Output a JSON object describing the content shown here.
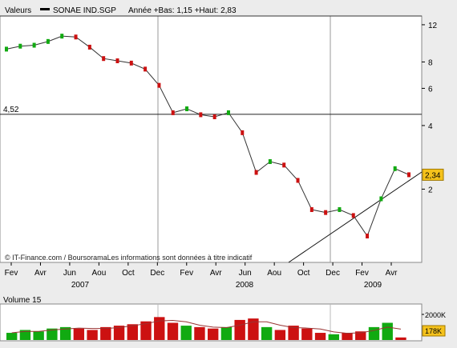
{
  "header": {
    "label": "Valeurs",
    "series": "SONAE IND.SGP",
    "range_text": "Année +Bas: 1,15 +Haut: 2,83"
  },
  "footer": {
    "credit": "© IT-Finance.com / BoursoramaLes informations sont données à titre indicatif"
  },
  "volume_panel": {
    "label": "Volume 15",
    "axis_label": "2000K",
    "last_label": "178K",
    "ymax_k": 2400
  },
  "colors": {
    "up": "#11aa11",
    "down": "#cc1111",
    "price_line": "#333333",
    "volume_avg": "#993333",
    "last_badge": "#f5c21b"
  },
  "chart_data": [
    {
      "type": "line",
      "title": "SONAE IND.SGP",
      "xlabel": "",
      "ylabel": "",
      "scale": "log",
      "ylim": [
        0.9,
        13.2
      ],
      "yticks": [
        2,
        4,
        6,
        8,
        12
      ],
      "ytick_labels": [
        "2",
        "4",
        "6",
        "8",
        "12"
      ],
      "grid": false,
      "x_month_labels": [
        "Fev",
        "Avr",
        "Jun",
        "Aou",
        "Oct",
        "Dec",
        "Fev",
        "Avr",
        "Jun",
        "Aou",
        "Oct",
        "Dec",
        "Fev",
        "Avr"
      ],
      "x_year_labels": [
        "2007",
        "2008",
        "2009"
      ],
      "reference_line": {
        "value": 4.52,
        "label": "4,52"
      },
      "last_value": {
        "value": 2.34,
        "label": "2,34"
      },
      "series": [
        {
          "name": "SONAE IND.SGP",
          "x": [
            "2007-01",
            "2007-02",
            "2007-03",
            "2007-04",
            "2007-05",
            "2007-06",
            "2007-07",
            "2007-08",
            "2007-09",
            "2007-10",
            "2007-11",
            "2007-12",
            "2008-01",
            "2008-02",
            "2008-03",
            "2008-04",
            "2008-05",
            "2008-06",
            "2008-07",
            "2008-08",
            "2008-09",
            "2008-10",
            "2008-11",
            "2008-12",
            "2009-01",
            "2009-02",
            "2009-03",
            "2009-04",
            "2009-05",
            "2009-06"
          ],
          "values": [
            9.2,
            9.5,
            9.6,
            10.0,
            10.6,
            10.5,
            9.4,
            8.3,
            8.1,
            7.9,
            7.4,
            6.2,
            4.6,
            4.8,
            4.5,
            4.4,
            4.6,
            3.7,
            2.4,
            2.7,
            2.6,
            2.2,
            1.6,
            1.55,
            1.6,
            1.5,
            1.2,
            1.8,
            2.5,
            2.34
          ]
        }
      ]
    },
    {
      "type": "bar",
      "title": "Volume 15",
      "xlabel": "",
      "ylabel": "",
      "ylim": [
        0,
        2400
      ],
      "yticks": [
        2000
      ],
      "ytick_labels": [
        "2000K"
      ],
      "grid": false,
      "categories": [
        "2007-01",
        "2007-02",
        "2007-03",
        "2007-04",
        "2007-05",
        "2007-06",
        "2007-07",
        "2007-08",
        "2007-09",
        "2007-10",
        "2007-11",
        "2007-12",
        "2008-01",
        "2008-02",
        "2008-03",
        "2008-04",
        "2008-05",
        "2008-06",
        "2008-07",
        "2008-08",
        "2008-09",
        "2008-10",
        "2008-11",
        "2008-12",
        "2009-01",
        "2009-02",
        "2009-03",
        "2009-04",
        "2009-05",
        "2009-06"
      ],
      "series": [
        {
          "values": [
            500,
            700,
            600,
            800,
            900,
            800,
            700,
            900,
            1000,
            1100,
            1300,
            1600,
            1200,
            1000,
            900,
            800,
            900,
            1400,
            1500,
            900,
            700,
            1000,
            800,
            500,
            400,
            500,
            600,
            900,
            1200,
            178
          ]
        }
      ]
    }
  ]
}
